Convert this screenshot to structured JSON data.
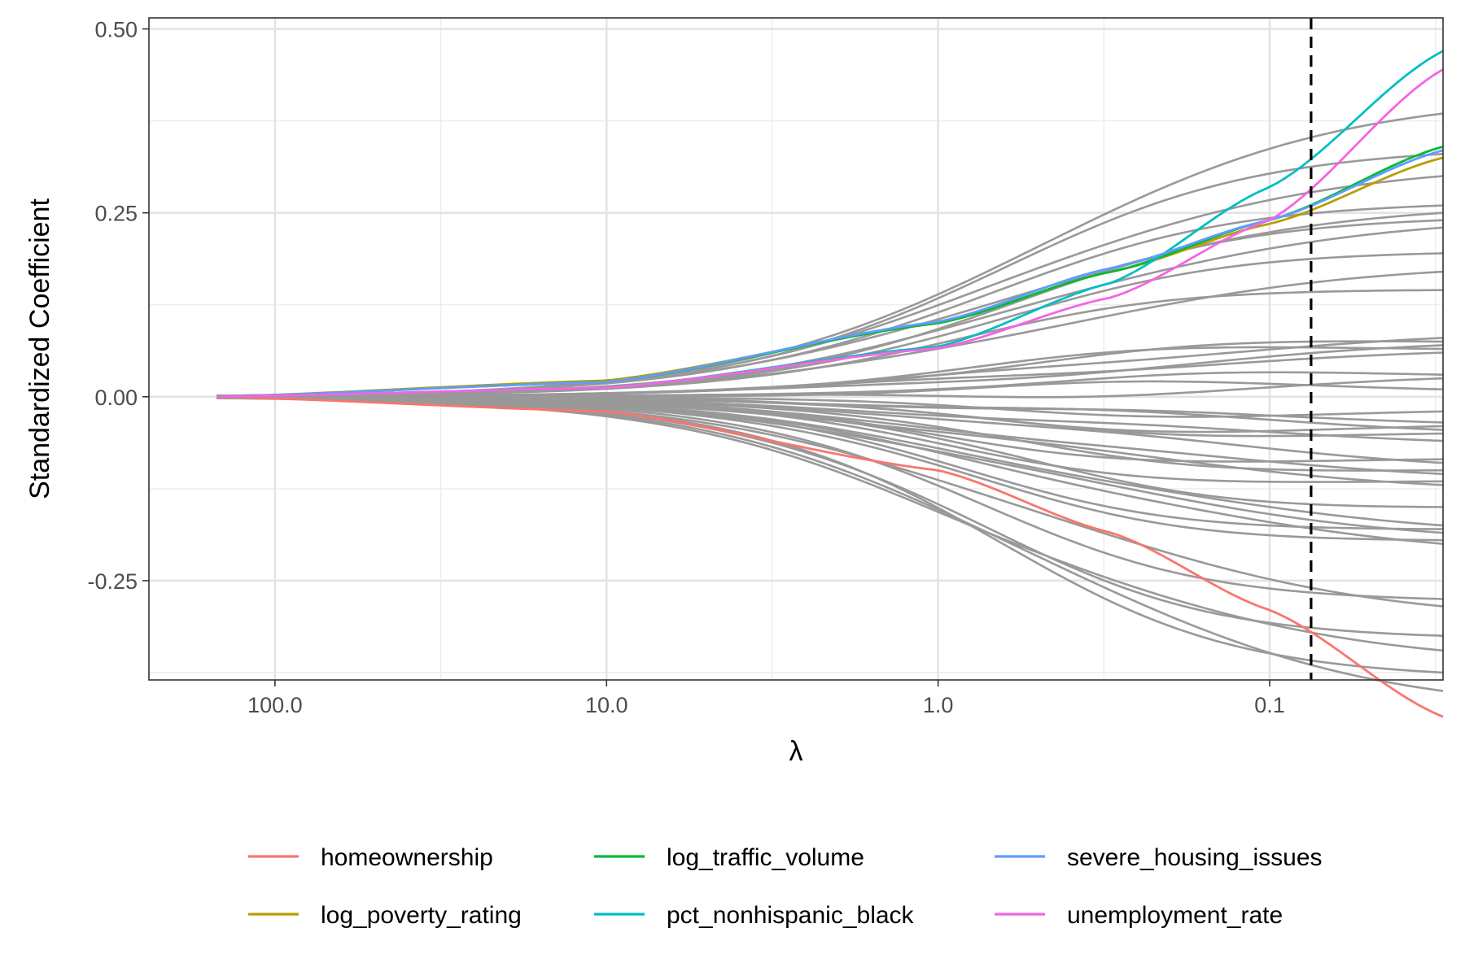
{
  "chart_data": {
    "type": "line",
    "title": "",
    "xlabel": "λ",
    "ylabel": "Standardized Coefficient",
    "x_scale": "log10-reversed",
    "xlim": [
      240,
      0.03
    ],
    "ylim": [
      -0.385,
      0.515
    ],
    "x_ticks": [
      {
        "value": 100,
        "label": "100.0"
      },
      {
        "value": 10,
        "label": "10.0"
      },
      {
        "value": 1,
        "label": "1.0"
      },
      {
        "value": 0.1,
        "label": "0.1"
      }
    ],
    "y_ticks": [
      {
        "value": 0.5,
        "label": "0.50"
      },
      {
        "value": 0.25,
        "label": "0.25"
      },
      {
        "value": 0,
        "label": "0.00"
      },
      {
        "value": -0.25,
        "label": "-0.25"
      }
    ],
    "grid": true,
    "reference_line": {
      "x": 0.075,
      "style": "dashed",
      "color": "#000000"
    },
    "lambda_range": [
      150,
      0.03
    ],
    "background_series_color": "#999999",
    "background_series_final_values": [
      0.385,
      0.33,
      0.3,
      0.26,
      0.25,
      0.24,
      0.23,
      0.195,
      0.17,
      0.145,
      0.08,
      0.075,
      0.07,
      0.065,
      0.06,
      0.03,
      0.025,
      0.01,
      -0.02,
      -0.035,
      -0.04,
      -0.045,
      -0.05,
      -0.06,
      -0.085,
      -0.09,
      -0.1,
      -0.105,
      -0.115,
      -0.12,
      -0.15,
      -0.175,
      -0.18,
      -0.185,
      -0.195,
      -0.2,
      -0.275,
      -0.285,
      -0.325,
      -0.345,
      -0.375,
      -0.4
    ],
    "series": [
      {
        "name": "homeownership",
        "color": "#F8766D",
        "x": [
          150,
          10,
          1,
          0.3,
          0.1,
          0.03
        ],
        "values": [
          0,
          -0.02,
          -0.1,
          -0.185,
          -0.29,
          -0.435
        ]
      },
      {
        "name": "log_poverty_rating",
        "color": "#B79F00",
        "x": [
          150,
          10,
          1,
          0.3,
          0.1,
          0.03
        ],
        "values": [
          0,
          0.022,
          0.1,
          0.17,
          0.235,
          0.325
        ]
      },
      {
        "name": "log_traffic_volume",
        "color": "#00BA38",
        "x": [
          150,
          10,
          1,
          0.3,
          0.1,
          0.03
        ],
        "values": [
          0,
          0.02,
          0.1,
          0.17,
          0.24,
          0.34
        ]
      },
      {
        "name": "pct_nonhispanic_black",
        "color": "#00BFC4",
        "x": [
          150,
          10,
          1,
          0.3,
          0.1,
          0.03
        ],
        "values": [
          0,
          0.012,
          0.068,
          0.155,
          0.285,
          0.47
        ]
      },
      {
        "name": "severe_housing_issues",
        "color": "#619CFF",
        "x": [
          150,
          10,
          1,
          0.3,
          0.1,
          0.03
        ],
        "values": [
          0,
          0.02,
          0.102,
          0.175,
          0.24,
          0.335
        ]
      },
      {
        "name": "unemployment_rate",
        "color": "#F564E3",
        "x": [
          150,
          10,
          1,
          0.3,
          0.1,
          0.03
        ],
        "values": [
          0,
          0.012,
          0.066,
          0.135,
          0.24,
          0.445
        ]
      }
    ],
    "legend": {
      "position": "bottom",
      "columns": 3,
      "entries": [
        "homeownership",
        "log_poverty_rating",
        "log_traffic_volume",
        "pct_nonhispanic_black",
        "severe_housing_issues",
        "unemployment_rate"
      ]
    }
  }
}
